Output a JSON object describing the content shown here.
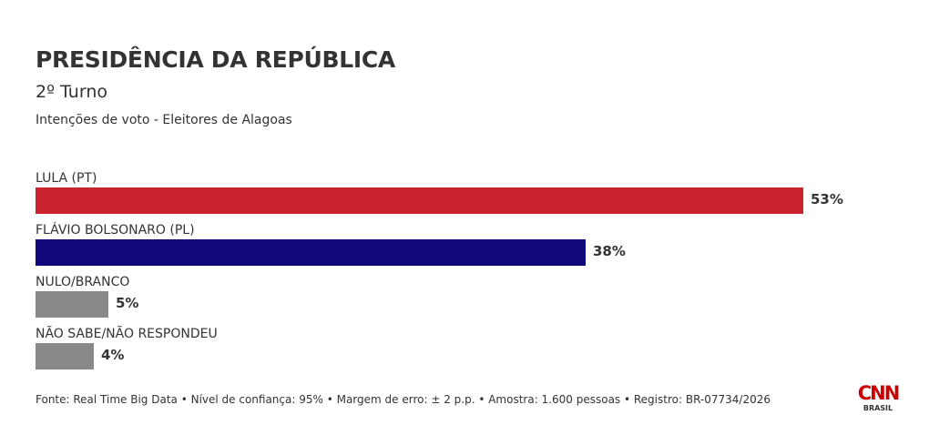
{
  "header": {
    "title": "PRESIDÊNCIA DA REPÚBLICA",
    "subtitle": "2º Turno",
    "description": "Intenções de voto - Eleitores de Alagoas"
  },
  "chart_data": {
    "type": "bar",
    "orientation": "horizontal",
    "categories": [
      "LULA (PT)",
      "FLÁVIO BOLSONARO (PL)",
      "NULO/BRANCO",
      "NÃO SABE/NÃO RESPONDEU"
    ],
    "values": [
      53,
      38,
      5,
      4
    ],
    "value_labels": [
      "53%",
      "38%",
      "5%",
      "4%"
    ],
    "colors": [
      "#cc2230",
      "#10087a",
      "#888888",
      "#888888"
    ],
    "xlim": [
      0,
      53
    ],
    "grid": false,
    "legend": "none"
  },
  "footer": {
    "source": "Fonte: Real Time Big Data • Nível de confiança: 95% • Margem de erro: ± 2 p.p. • Amostra: 1.600 pessoas • Registro: BR-07734/2026"
  },
  "logo": {
    "name": "CNN",
    "sub": "BRASIL",
    "color": "#cc0000"
  }
}
